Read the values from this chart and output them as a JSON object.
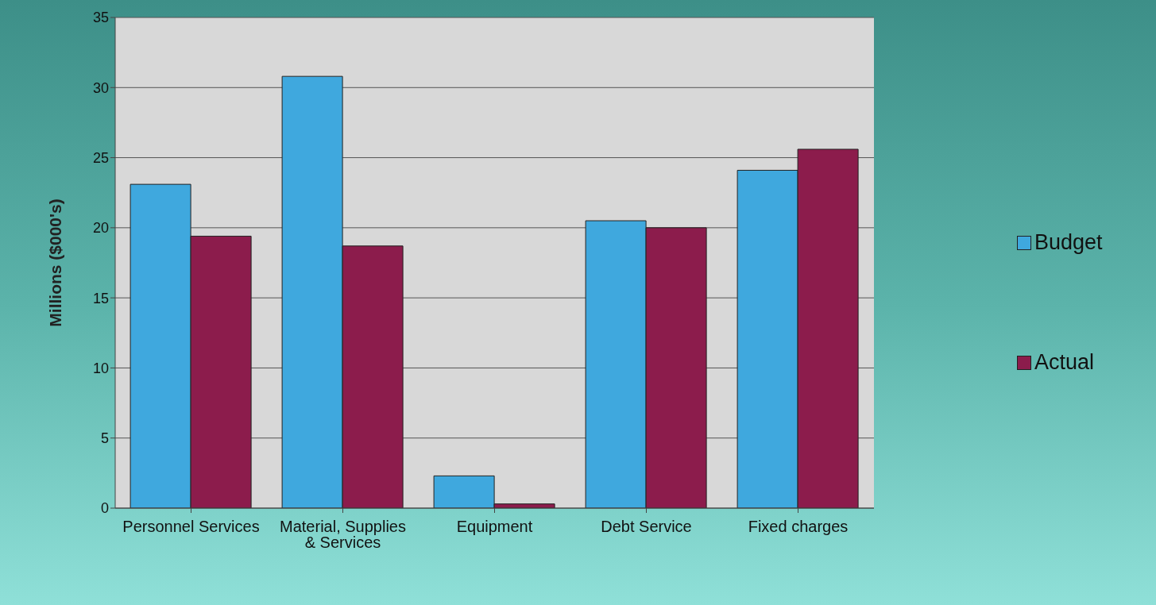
{
  "chart_data": {
    "type": "bar",
    "ylabel": "Millions ($000's)",
    "categories": [
      "Personnel Services",
      "Material, Supplies & Services",
      "Equipment",
      "Debt Service",
      "Fixed charges"
    ],
    "series": [
      {
        "name": "Budget",
        "color": "#3fa8de",
        "values": [
          23.1,
          30.8,
          2.3,
          20.5,
          24.1
        ]
      },
      {
        "name": "Actual",
        "color": "#8c1c4c",
        "values": [
          19.4,
          18.7,
          0.3,
          20.0,
          25.6
        ]
      }
    ],
    "ylim": [
      0,
      35
    ],
    "yticks": [
      0,
      5,
      10,
      15,
      20,
      25,
      30,
      35
    ],
    "grid": "y",
    "legend": "right"
  }
}
